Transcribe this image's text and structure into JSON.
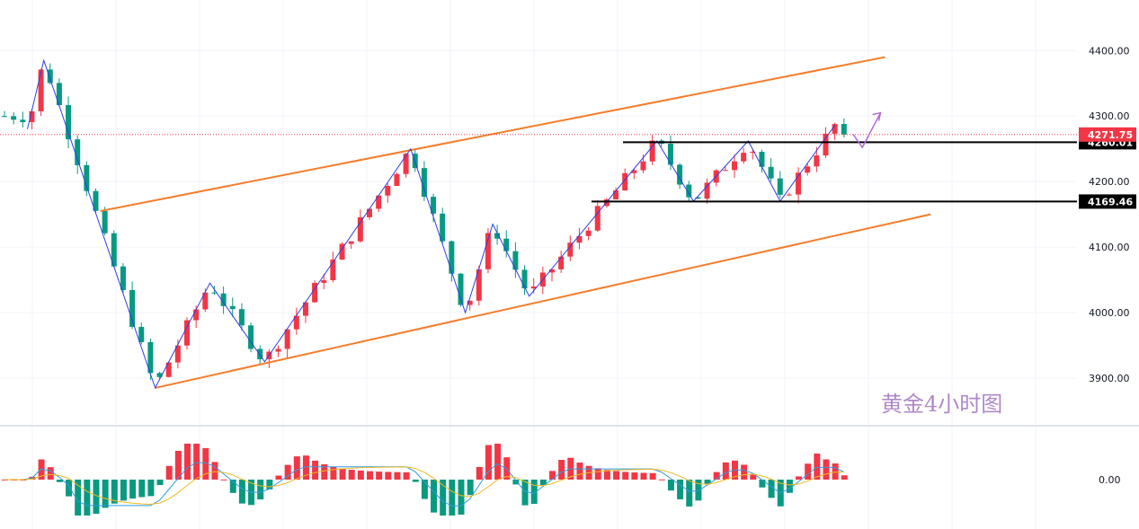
{
  "chart_data": {
    "type": "candlestick",
    "instrument": "黄金4小时图",
    "price_axis": {
      "ticks": [
        {
          "value": 4400,
          "label": "4400.00"
        },
        {
          "value": 4300,
          "label": "4300.00"
        },
        {
          "value": 4200,
          "label": "4200.00"
        },
        {
          "value": 4100,
          "label": "4100.00"
        },
        {
          "value": 4000,
          "label": "4000.00"
        },
        {
          "value": 3900,
          "label": "3900.00"
        }
      ],
      "range": [
        3840,
        4470
      ]
    },
    "current_price": {
      "value": 4271.75,
      "label": "4271.75",
      "color": "#f23645"
    },
    "levels": [
      {
        "value": 4260.01,
        "label": "4260.01",
        "color": "#000000"
      },
      {
        "value": 4169.46,
        "label": "4169.46",
        "color": "#000000"
      }
    ],
    "indicator_axis": {
      "ticks": [
        {
          "value": 0,
          "label": "0.00"
        }
      ]
    },
    "zigzag_pivots": [
      3.0,
      4280,
      4.8,
      4385,
      17.0,
      3885,
      23.0,
      4045,
      29.0,
      3925,
      45.0,
      4250,
      51.0,
      4000,
      54.0,
      4135,
      58.0,
      4025,
      72.0,
      4262,
      76.0,
      4170,
      82.0,
      4262,
      85.5,
      4170,
      91.5,
      4286
    ],
    "channel_upper": [
      11.0,
      4155,
      97.0,
      4390
    ],
    "channel_lower": [
      17.0,
      3885,
      102.0,
      4150
    ],
    "projection_path": [
      93.5,
      4272,
      94.5,
      4252,
      95.2,
      4270,
      94.5,
      4252,
      96.5,
      4305
    ],
    "colors": {
      "up": "#f23645",
      "down": "#089981",
      "channel": "#f57c2b",
      "zigzag": "#3040e0",
      "projection": "#b36ad6",
      "macd_line": "#2f9ae0",
      "signal_line": "#f2b822"
    },
    "watermark": "黄金4小时图"
  }
}
